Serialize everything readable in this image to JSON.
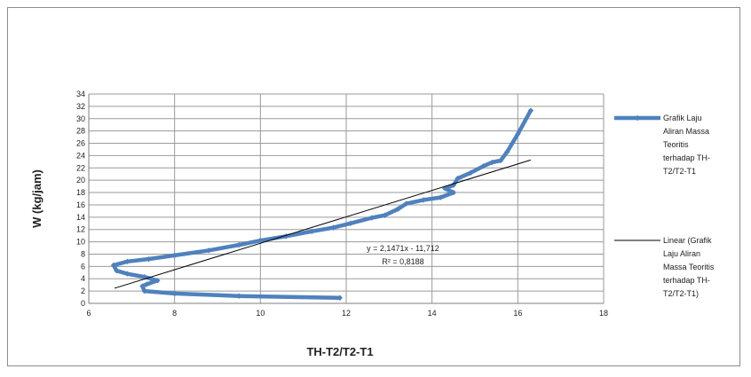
{
  "chart_data": {
    "type": "line",
    "title": "",
    "xlabel": "TH-T2/T2-T1",
    "ylabel": "W (kg/jam)",
    "xlim": [
      6,
      18
    ],
    "ylim": [
      0,
      34
    ],
    "x_ticks": [
      "6",
      "8",
      "10",
      "12",
      "14",
      "16",
      "18"
    ],
    "y_ticks": [
      "0",
      "2",
      "4",
      "6",
      "8",
      "10",
      "12",
      "14",
      "16",
      "18",
      "20",
      "22",
      "24",
      "26",
      "28",
      "30",
      "32",
      "34"
    ],
    "grid": true,
    "legend_position": "right",
    "series": [
      {
        "name": "Grafik Laju Aliran Massa Teoritis terhadap TH-T2/T2-T1",
        "color": "#4f81bd",
        "marker": "diamond",
        "points": [
          [
            11.85,
            0.9
          ],
          [
            9.5,
            1.2
          ],
          [
            8.0,
            1.6
          ],
          [
            7.3,
            2.0
          ],
          [
            7.25,
            2.8
          ],
          [
            7.35,
            3.1
          ],
          [
            7.6,
            3.7
          ],
          [
            7.3,
            4.3
          ],
          [
            6.9,
            4.8
          ],
          [
            6.65,
            5.3
          ],
          [
            6.58,
            6.2
          ],
          [
            6.9,
            6.8
          ],
          [
            7.4,
            7.2
          ],
          [
            8.0,
            7.8
          ],
          [
            8.8,
            8.6
          ],
          [
            9.5,
            9.5
          ],
          [
            10.0,
            10.2
          ],
          [
            10.6,
            10.9
          ],
          [
            11.2,
            11.7
          ],
          [
            11.7,
            12.3
          ],
          [
            12.1,
            13.0
          ],
          [
            12.6,
            13.9
          ],
          [
            12.9,
            14.3
          ],
          [
            13.2,
            15.3
          ],
          [
            13.4,
            16.2
          ],
          [
            13.8,
            16.8
          ],
          [
            14.2,
            17.2
          ],
          [
            14.5,
            18.0
          ],
          [
            14.3,
            18.7
          ],
          [
            14.5,
            19.2
          ],
          [
            14.6,
            20.3
          ],
          [
            14.9,
            21.2
          ],
          [
            15.2,
            22.3
          ],
          [
            15.4,
            22.9
          ],
          [
            15.6,
            23.2
          ],
          [
            15.75,
            24.6
          ],
          [
            16.0,
            27.5
          ],
          [
            16.3,
            31.3
          ]
        ]
      },
      {
        "name": "Linear (Grafik Laju Aliran Massa Teoritis terhadap TH-T2/T2-T1)",
        "color": "#000000",
        "type": "trendline",
        "equation": "y = 2,1471x - 11,712",
        "r_squared": "R² = 0,8188",
        "slope": 2.1471,
        "intercept": -11.712,
        "x_range": [
          6.6,
          16.3
        ]
      }
    ],
    "legend": [
      {
        "lines": [
          "Grafik Laju",
          "Aliran Massa",
          "Teoritis",
          "terhadap TH-",
          "T2/T2-T1"
        ]
      },
      {
        "lines": [
          "Linear (Grafik",
          "Laju Aliran",
          "Massa Teoritis",
          "terhadap TH-",
          "T2/T2-T1)"
        ]
      }
    ]
  }
}
